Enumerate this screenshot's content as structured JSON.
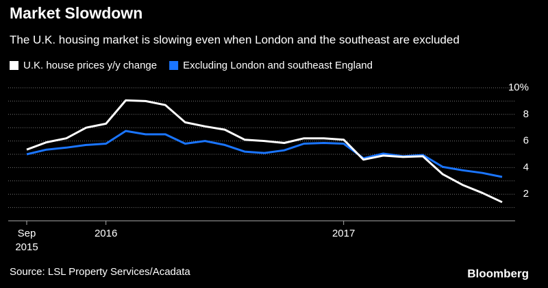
{
  "chart_data": {
    "type": "line",
    "title": "Market Slowdown",
    "subtitle": "The U.K. housing market is slowing even when London and the southeast are excluded",
    "source": "Source: LSL Property Services/Acadata",
    "brand": "Bloomberg",
    "categories": [
      "Sep 2015",
      null,
      null,
      null,
      "2016",
      null,
      null,
      null,
      null,
      null,
      null,
      null,
      null,
      null,
      null,
      null,
      "2017",
      null,
      null,
      null,
      null,
      null,
      null,
      null,
      null
    ],
    "series": [
      {
        "name": "U.K. house prices y/y change",
        "color": "#ffffff",
        "values": [
          5.35,
          5.9,
          6.2,
          7.0,
          7.3,
          9.05,
          9.0,
          8.7,
          7.4,
          7.1,
          6.85,
          6.1,
          6.0,
          5.85,
          6.2,
          6.2,
          6.1,
          4.6,
          4.9,
          4.8,
          4.85,
          3.5,
          2.7,
          2.1,
          1.4
        ]
      },
      {
        "name": "Excluding London and southeast England",
        "color": "#1a75ff",
        "values": [
          5.0,
          5.35,
          5.5,
          5.7,
          5.8,
          6.75,
          6.5,
          6.5,
          5.8,
          6.0,
          5.7,
          5.2,
          5.1,
          5.3,
          5.8,
          5.85,
          5.8,
          4.7,
          5.05,
          4.85,
          4.95,
          4.05,
          3.8,
          3.6,
          3.3
        ]
      }
    ],
    "ylim": [
      0,
      10
    ],
    "yticks": [
      2,
      4,
      6,
      8,
      {
        "value": 10,
        "label": "10%"
      }
    ],
    "minor_yticks": [
      1,
      3,
      5,
      7,
      9
    ],
    "grid": true,
    "legend": "top-left"
  }
}
